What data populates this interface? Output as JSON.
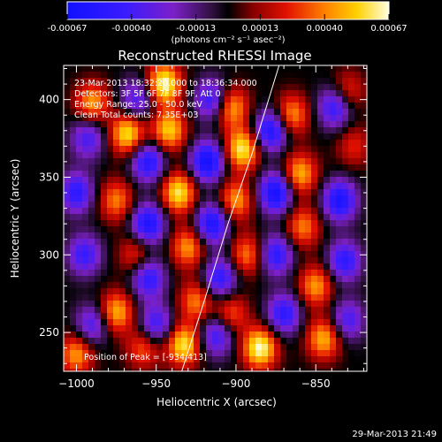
{
  "colorbar": {
    "tick_labels": [
      "-0.00067",
      "-0.00040",
      "-0.00013",
      "0.00013",
      "0.00040",
      "0.00067"
    ],
    "units_label": "(photons cm⁻² s⁻¹ asec⁻²)"
  },
  "plot": {
    "title": "Reconstructed RHESSI Image",
    "xlabel": "Heliocentric X (arcsec)",
    "ylabel": "Heliocentric Y (arcsec)",
    "x_tick_labels": [
      "−1000",
      "−950",
      "−900",
      "−850"
    ],
    "y_tick_labels": [
      "250",
      "300",
      "350",
      "400"
    ],
    "info_lines": [
      "23-Mar-2013 18:32:20.000 to 18:36:34.000",
      "Detectors: 3F 5F 6F 7F 8F 9F, Att 0",
      "Energy Range: 25.0 - 50.0 keV",
      "Clean    Total counts: 7.35E+03"
    ],
    "peak_label": "Position of Peak = [-934,413]"
  },
  "footer": {
    "timestamp": "29-Mar-2013 21:49"
  },
  "chart_data": {
    "type": "heatmap",
    "title": "Reconstructed RHESSI Image",
    "xlabel": "Heliocentric X (arcsec)",
    "ylabel": "Heliocentric Y (arcsec)",
    "xlim": [
      -1008,
      -818
    ],
    "ylim": [
      225,
      422
    ],
    "x_ticks": [
      -1000,
      -950,
      -900,
      -850
    ],
    "y_ticks": [
      250,
      300,
      350,
      400
    ],
    "color_range": [
      -0.00067,
      0.00067
    ],
    "colormap": "rainbow-hot (blue-purple-black-red-yellow-white)",
    "peak_position": [
      -934,
      413
    ],
    "limb_curve": [
      [
        -934,
        225
      ],
      [
        -920,
        270
      ],
      [
        -905,
        320
      ],
      [
        -890,
        365
      ],
      [
        -873,
        422
      ]
    ],
    "blobs": [
      {
        "x": -990,
        "y": 398,
        "v": 0.00045
      },
      {
        "x": -968,
        "y": 378,
        "v": 0.0006
      },
      {
        "x": -975,
        "y": 335,
        "v": 0.0004
      },
      {
        "x": -963,
        "y": 300,
        "v": 0.0003
      },
      {
        "x": -975,
        "y": 263,
        "v": 0.0005
      },
      {
        "x": -958,
        "y": 240,
        "v": 0.00035
      },
      {
        "x": -945,
        "y": 410,
        "v": 0.00067
      },
      {
        "x": -942,
        "y": 380,
        "v": 0.00055
      },
      {
        "x": -936,
        "y": 340,
        "v": 0.0006
      },
      {
        "x": -930,
        "y": 305,
        "v": 0.00045
      },
      {
        "x": -925,
        "y": 270,
        "v": 0.0004
      },
      {
        "x": -933,
        "y": 242,
        "v": 0.0006
      },
      {
        "x": -903,
        "y": 395,
        "v": 0.0005
      },
      {
        "x": -896,
        "y": 368,
        "v": 0.00062
      },
      {
        "x": -900,
        "y": 335,
        "v": 0.00045
      },
      {
        "x": -893,
        "y": 300,
        "v": 0.0004
      },
      {
        "x": -903,
        "y": 262,
        "v": 0.00035
      },
      {
        "x": -885,
        "y": 240,
        "v": 0.00067
      },
      {
        "x": -865,
        "y": 390,
        "v": 0.00045
      },
      {
        "x": -860,
        "y": 352,
        "v": 0.0005
      },
      {
        "x": -858,
        "y": 318,
        "v": 0.0004
      },
      {
        "x": -850,
        "y": 280,
        "v": 0.00045
      },
      {
        "x": -845,
        "y": 246,
        "v": 0.0005
      },
      {
        "x": -830,
        "y": 405,
        "v": 0.0003
      },
      {
        "x": -826,
        "y": 370,
        "v": 0.00025
      },
      {
        "x": -1000,
        "y": 236,
        "v": 0.00045
      },
      {
        "x": -1000,
        "y": 340,
        "v": -0.0005
      },
      {
        "x": -995,
        "y": 300,
        "v": -0.00045
      },
      {
        "x": -993,
        "y": 375,
        "v": -0.0004
      },
      {
        "x": -990,
        "y": 255,
        "v": -0.0004
      },
      {
        "x": -955,
        "y": 360,
        "v": -0.00055
      },
      {
        "x": -955,
        "y": 320,
        "v": -0.0006
      },
      {
        "x": -955,
        "y": 285,
        "v": -0.0005
      },
      {
        "x": -950,
        "y": 255,
        "v": -0.00045
      },
      {
        "x": -962,
        "y": 400,
        "v": -0.0004
      },
      {
        "x": -915,
        "y": 400,
        "v": -0.0005
      },
      {
        "x": -918,
        "y": 360,
        "v": -0.00065
      },
      {
        "x": -915,
        "y": 320,
        "v": -0.0006
      },
      {
        "x": -910,
        "y": 285,
        "v": -0.0005
      },
      {
        "x": -912,
        "y": 248,
        "v": -0.00045
      },
      {
        "x": -878,
        "y": 380,
        "v": -0.0006
      },
      {
        "x": -875,
        "y": 340,
        "v": -0.00065
      },
      {
        "x": -875,
        "y": 300,
        "v": -0.0005
      },
      {
        "x": -870,
        "y": 262,
        "v": -0.0005
      },
      {
        "x": -838,
        "y": 395,
        "v": -0.0005
      },
      {
        "x": -835,
        "y": 335,
        "v": -0.0006
      },
      {
        "x": -832,
        "y": 296,
        "v": -0.0005
      },
      {
        "x": -830,
        "y": 258,
        "v": -0.0004
      }
    ]
  }
}
